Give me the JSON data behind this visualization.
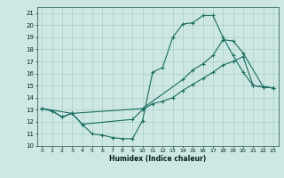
{
  "xlabel": "Humidex (Indice chaleur)",
  "bg_color": "#cde8e2",
  "grid_color": "#a8cfc8",
  "line_color": "#1a6b60",
  "xlim": [
    -0.5,
    23.5
  ],
  "ylim": [
    10,
    21.5
  ],
  "yticks": [
    10,
    11,
    12,
    13,
    14,
    15,
    16,
    17,
    18,
    19,
    20,
    21
  ],
  "xticks": [
    0,
    1,
    2,
    3,
    4,
    5,
    6,
    7,
    8,
    9,
    10,
    11,
    12,
    13,
    14,
    15,
    16,
    17,
    18,
    19,
    20,
    21,
    22,
    23
  ],
  "series": [
    {
      "x": [
        0,
        1,
        2,
        3,
        4,
        5,
        6,
        7,
        8,
        9,
        10,
        11,
        12,
        13,
        14,
        15,
        16,
        17,
        18,
        19,
        20,
        21,
        22,
        23
      ],
      "y": [
        13.1,
        12.9,
        12.4,
        12.7,
        11.8,
        11.0,
        10.9,
        10.7,
        10.6,
        10.6,
        12.1,
        16.1,
        16.5,
        19.0,
        20.1,
        20.2,
        20.8,
        20.8,
        19.0,
        17.5,
        16.1,
        15.0,
        14.9,
        14.8
      ]
    },
    {
      "x": [
        0,
        3,
        10,
        14,
        15,
        16,
        17,
        18,
        19,
        20,
        22,
        23
      ],
      "y": [
        13.1,
        12.7,
        13.1,
        15.5,
        16.3,
        16.8,
        17.5,
        18.8,
        18.7,
        17.7,
        14.9,
        14.8
      ]
    },
    {
      "x": [
        0,
        1,
        2,
        3,
        4,
        9,
        10,
        11,
        12,
        13,
        14,
        15,
        16,
        17,
        18,
        19,
        20,
        21,
        22,
        23
      ],
      "y": [
        13.1,
        12.9,
        12.4,
        12.7,
        11.8,
        12.2,
        13.0,
        13.5,
        13.7,
        14.0,
        14.6,
        15.1,
        15.6,
        16.1,
        16.7,
        17.0,
        17.4,
        15.0,
        14.9,
        14.8
      ]
    }
  ]
}
